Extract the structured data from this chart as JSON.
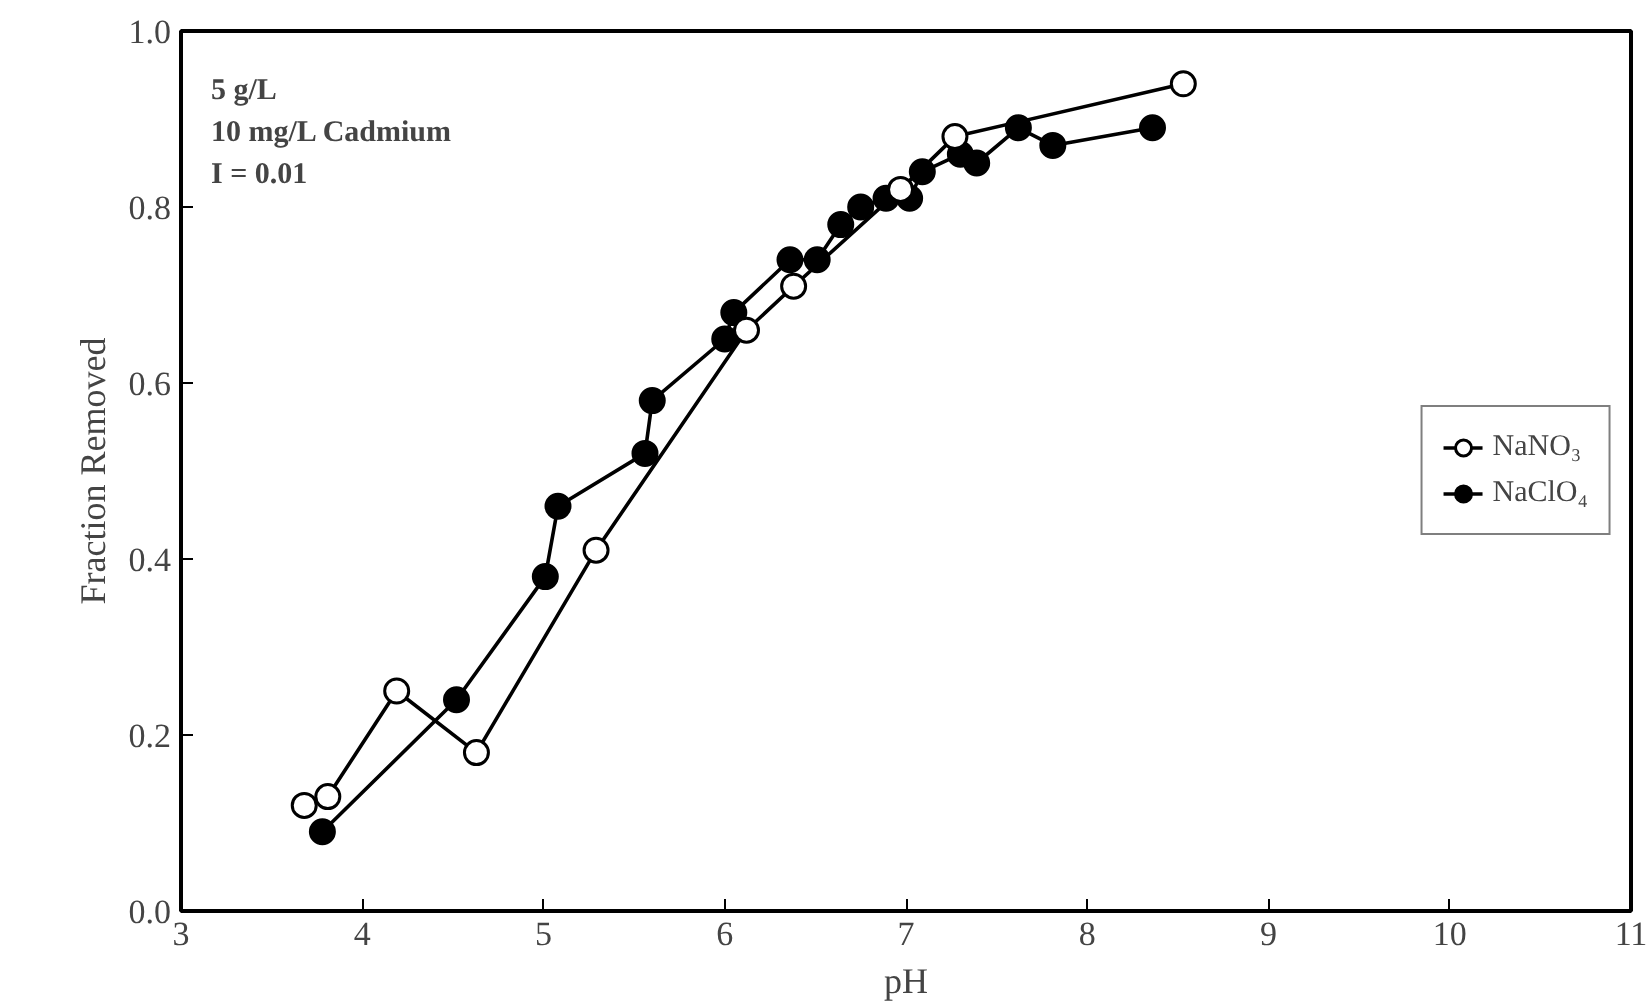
{
  "chart_data": {
    "type": "line",
    "xlabel": "pH",
    "ylabel": "Fraction Removed",
    "xlim": [
      3,
      11
    ],
    "ylim": [
      0,
      1
    ],
    "xticks": [
      3,
      4,
      5,
      6,
      7,
      8,
      9,
      10,
      11
    ],
    "yticks": [
      {
        "value": 0,
        "label": "0.0"
      },
      0.2,
      0.4,
      0.6,
      0.8,
      {
        "value": 1,
        "label": "1.0"
      }
    ],
    "grid": false,
    "legend": "right",
    "line_style": "solid",
    "annotations": [
      "5 g/L",
      "10 mg/L Cadmium",
      "I = 0.01"
    ],
    "series": [
      {
        "name": "NaNO₃",
        "color": "#000000",
        "marker": "circle_open",
        "x": [
          3.68,
          3.81,
          4.19,
          4.63,
          5.29,
          6.12,
          6.38,
          6.97,
          7.27,
          8.53
        ],
        "values": [
          0.12,
          0.13,
          0.25,
          0.18,
          0.41,
          0.66,
          0.71,
          0.82,
          0.88,
          0.94
        ]
      },
      {
        "name": "NaClO₄",
        "color": "#000000",
        "marker": "circle",
        "x": [
          3.78,
          4.52,
          5.01,
          5.08,
          5.56,
          5.6,
          6.0,
          6.05,
          6.36,
          6.51,
          6.64,
          6.75,
          6.89,
          7.02,
          7.09,
          7.3,
          7.39,
          7.62,
          7.81,
          8.36
        ],
        "values": [
          0.09,
          0.24,
          0.38,
          0.46,
          0.52,
          0.58,
          0.65,
          0.68,
          0.74,
          0.74,
          0.78,
          0.8,
          0.81,
          0.81,
          0.84,
          0.86,
          0.85,
          0.89,
          0.87,
          0.89
        ]
      }
    ]
  }
}
